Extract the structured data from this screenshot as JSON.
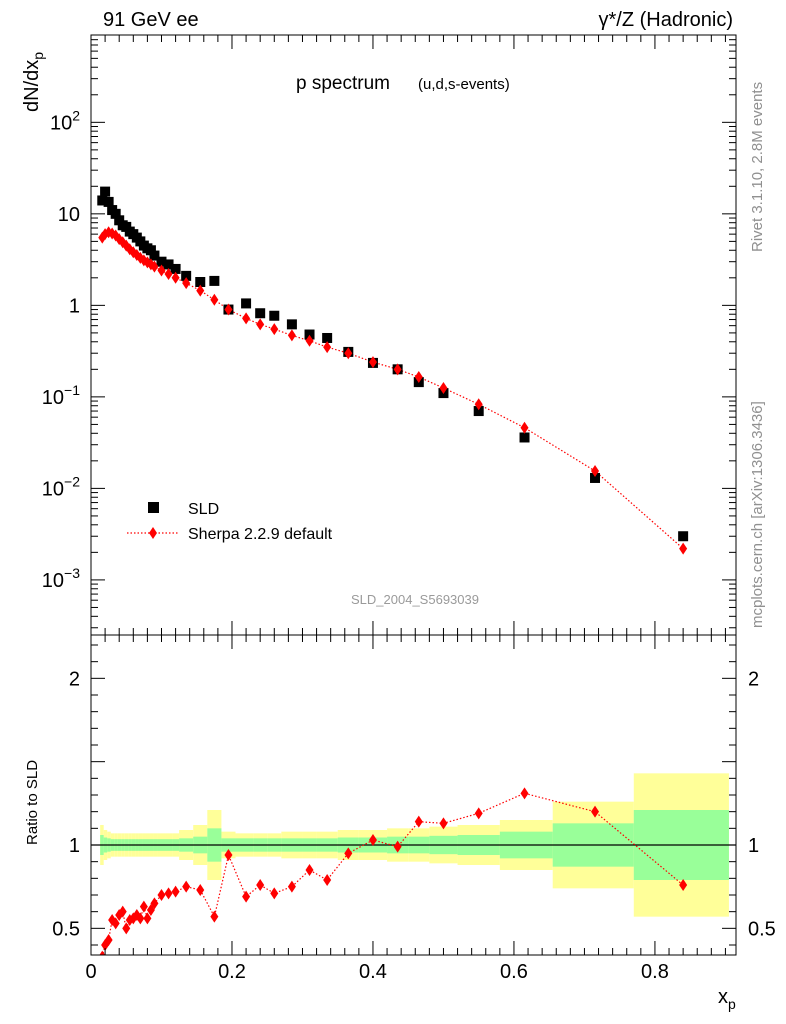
{
  "header": {
    "left": "91 GeV ee",
    "right": "γ*/Z (Hadronic)",
    "side_top": "Rivet 3.1.10,  2.8M events",
    "side_bottom": "mcplots.cern.ch [arXiv:1306.3436]"
  },
  "colors": {
    "data": "#000000",
    "mc": "#ff0000",
    "band_inner": "#99ff99",
    "band_outer": "#ffff99"
  },
  "chart_data": [
    {
      "type": "scatter",
      "title": "p spectrum",
      "subtitle": "(u,d,s-events)",
      "watermark": "SLD_2004_S5693039",
      "ylabel": "dN/dx_p",
      "yscale": "log",
      "ylim": [
        0.00025,
        900
      ],
      "xlim": [
        0,
        0.915
      ],
      "y_ticks": [
        "10^-3",
        "10^-2",
        "10^-1",
        "1",
        "10",
        "10^2"
      ],
      "legend_position": "lower-left",
      "series": [
        {
          "name": "SLD",
          "marker": "square",
          "x": [
            0.016,
            0.02,
            0.025,
            0.03,
            0.035,
            0.04,
            0.045,
            0.05,
            0.055,
            0.06,
            0.065,
            0.07,
            0.075,
            0.08,
            0.085,
            0.09,
            0.1,
            0.11,
            0.12,
            0.135,
            0.155,
            0.175,
            0.195,
            0.22,
            0.24,
            0.26,
            0.285,
            0.31,
            0.335,
            0.365,
            0.4,
            0.435,
            0.465,
            0.5,
            0.55,
            0.615,
            0.715,
            0.84
          ],
          "y": [
            14,
            17.5,
            13.5,
            11,
            10,
            8.5,
            7.5,
            7.2,
            6.4,
            6.0,
            5.5,
            5.0,
            4.5,
            4.2,
            4.0,
            3.5,
            3.0,
            2.8,
            2.5,
            2.1,
            1.8,
            1.85,
            0.9,
            1.05,
            0.82,
            0.77,
            0.62,
            0.48,
            0.44,
            0.31,
            0.235,
            0.2,
            0.145,
            0.11,
            0.07,
            0.036,
            0.013,
            0.003
          ]
        },
        {
          "name": "Sherpa 2.2.9 default",
          "marker": "diamond",
          "line": "dotted",
          "x": [
            0.016,
            0.02,
            0.025,
            0.03,
            0.035,
            0.04,
            0.045,
            0.05,
            0.055,
            0.06,
            0.065,
            0.07,
            0.075,
            0.08,
            0.085,
            0.09,
            0.1,
            0.11,
            0.12,
            0.135,
            0.155,
            0.175,
            0.195,
            0.22,
            0.24,
            0.26,
            0.285,
            0.31,
            0.335,
            0.365,
            0.4,
            0.435,
            0.465,
            0.5,
            0.55,
            0.615,
            0.715,
            0.84
          ],
          "y": [
            5.5,
            6.0,
            6.3,
            6.1,
            5.8,
            5.3,
            4.9,
            4.5,
            4.1,
            3.8,
            3.55,
            3.3,
            3.1,
            2.95,
            2.8,
            2.65,
            2.4,
            2.2,
            2.0,
            1.75,
            1.45,
            1.15,
            0.9,
            0.72,
            0.62,
            0.55,
            0.47,
            0.41,
            0.35,
            0.3,
            0.24,
            0.2,
            0.165,
            0.125,
            0.083,
            0.046,
            0.0155,
            0.0022
          ]
        }
      ]
    },
    {
      "type": "scatter",
      "ylabel": "Ratio to SLD",
      "xlabel": "x_p",
      "ylim": [
        0.34,
        2.26
      ],
      "xlim": [
        0,
        0.915
      ],
      "y_ticks": [
        "0.5",
        "1",
        "2"
      ],
      "x_ticks": [
        "0",
        "0.2",
        "0.4",
        "0.6",
        "0.8"
      ],
      "reference_line": 1,
      "bands": {
        "edges": [
          0.013,
          0.018,
          0.023,
          0.028,
          0.033,
          0.038,
          0.043,
          0.048,
          0.053,
          0.058,
          0.063,
          0.068,
          0.073,
          0.078,
          0.083,
          0.088,
          0.095,
          0.105,
          0.115,
          0.125,
          0.145,
          0.165,
          0.185,
          0.205,
          0.23,
          0.25,
          0.27,
          0.3,
          0.32,
          0.35,
          0.38,
          0.42,
          0.45,
          0.48,
          0.52,
          0.58,
          0.655,
          0.77,
          0.905
        ],
        "inner": [
          0.06,
          0.045,
          0.04,
          0.035,
          0.035,
          0.035,
          0.035,
          0.035,
          0.035,
          0.035,
          0.035,
          0.035,
          0.035,
          0.035,
          0.035,
          0.035,
          0.035,
          0.035,
          0.035,
          0.04,
          0.05,
          0.1,
          0.04,
          0.04,
          0.04,
          0.04,
          0.04,
          0.04,
          0.04,
          0.045,
          0.045,
          0.05,
          0.05,
          0.055,
          0.06,
          0.08,
          0.13,
          0.21,
          0.3
        ],
        "outer": [
          0.12,
          0.09,
          0.08,
          0.07,
          0.07,
          0.07,
          0.07,
          0.07,
          0.07,
          0.07,
          0.07,
          0.07,
          0.07,
          0.07,
          0.07,
          0.07,
          0.07,
          0.07,
          0.07,
          0.09,
          0.12,
          0.21,
          0.08,
          0.07,
          0.07,
          0.07,
          0.08,
          0.08,
          0.08,
          0.09,
          0.09,
          0.1,
          0.1,
          0.11,
          0.12,
          0.15,
          0.26,
          0.43,
          0.63
        ]
      },
      "series": [
        {
          "name": "Sherpa 2.2.9 default",
          "marker": "diamond",
          "line": "dotted",
          "x": [
            0.016,
            0.02,
            0.025,
            0.03,
            0.035,
            0.04,
            0.045,
            0.05,
            0.055,
            0.06,
            0.065,
            0.07,
            0.075,
            0.08,
            0.085,
            0.09,
            0.1,
            0.11,
            0.12,
            0.135,
            0.155,
            0.175,
            0.195,
            0.22,
            0.24,
            0.26,
            0.285,
            0.31,
            0.335,
            0.365,
            0.4,
            0.435,
            0.465,
            0.5,
            0.55,
            0.615,
            0.715,
            0.84
          ],
          "y": [
            0.33,
            0.4,
            0.43,
            0.55,
            0.53,
            0.58,
            0.6,
            0.5,
            0.55,
            0.56,
            0.58,
            0.56,
            0.63,
            0.56,
            0.61,
            0.65,
            0.7,
            0.71,
            0.72,
            0.75,
            0.73,
            0.57,
            0.94,
            0.69,
            0.76,
            0.71,
            0.75,
            0.85,
            0.79,
            0.95,
            1.03,
            0.99,
            1.14,
            1.13,
            1.19,
            1.31,
            1.2,
            0.76
          ]
        }
      ]
    }
  ]
}
